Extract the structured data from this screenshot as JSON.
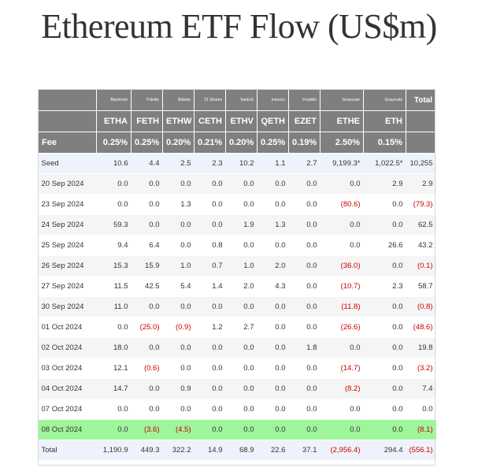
{
  "title": "Ethereum ETF Flow (US$m)",
  "colors": {
    "header_bg": "#7f7f7f",
    "highlight_row": "#9ef59a",
    "negative": "#cc0000",
    "seed_row": "#eef3fb"
  },
  "table": {
    "issuers": [
      "Blackrock",
      "Fidelity",
      "Bitwise",
      "21 Shares",
      "VanEck",
      "Invesco",
      "Franklin",
      "Grayscale",
      "Grayscale",
      "Total"
    ],
    "tickers": [
      "ETHA",
      "FETH",
      "ETHW",
      "CETH",
      "ETHV",
      "QETH",
      "EZET",
      "ETHE",
      "ETH"
    ],
    "fee_label": "Fee",
    "fees": [
      "0.25%",
      "0.25%",
      "0.20%",
      "0.21%",
      "0.20%",
      "0.25%",
      "0.19%",
      "2.50%",
      "0.15%"
    ],
    "rows": [
      {
        "label": "Seed",
        "values": [
          "10.6",
          "4.4",
          "2.5",
          "2.3",
          "10.2",
          "1.1",
          "2.7",
          "9,199.3*",
          "1,022.5*",
          "10,255"
        ]
      },
      {
        "label": "20 Sep 2024",
        "values": [
          "0.0",
          "0.0",
          "0.0",
          "0.0",
          "0.0",
          "0.0",
          "0.0",
          "0.0",
          "2.9",
          "2.9"
        ]
      },
      {
        "label": "23 Sep 2024",
        "values": [
          "0.0",
          "0.0",
          "1.3",
          "0.0",
          "0.0",
          "0.0",
          "0.0",
          "(80.6)",
          "0.0",
          "(79.3)"
        ]
      },
      {
        "label": "24 Sep 2024",
        "values": [
          "59.3",
          "0.0",
          "0.0",
          "0.0",
          "1.9",
          "1.3",
          "0.0",
          "0.0",
          "0.0",
          "62.5"
        ]
      },
      {
        "label": "25 Sep 2024",
        "values": [
          "9.4",
          "6.4",
          "0.0",
          "0.8",
          "0.0",
          "0.0",
          "0.0",
          "0.0",
          "26.6",
          "43.2"
        ]
      },
      {
        "label": "26 Sep 2024",
        "values": [
          "15.3",
          "15.9",
          "1.0",
          "0.7",
          "1.0",
          "2.0",
          "0.0",
          "(36.0)",
          "0.0",
          "(0.1)"
        ]
      },
      {
        "label": "27 Sep 2024",
        "values": [
          "11.5",
          "42.5",
          "5.4",
          "1.4",
          "2.0",
          "4.3",
          "0.0",
          "(10.7)",
          "2.3",
          "58.7"
        ]
      },
      {
        "label": "30 Sep 2024",
        "values": [
          "11.0",
          "0.0",
          "0.0",
          "0.0",
          "0.0",
          "0.0",
          "0.0",
          "(11.8)",
          "0.0",
          "(0.8)"
        ]
      },
      {
        "label": "01 Oct 2024",
        "values": [
          "0.0",
          "(25.0)",
          "(0.9)",
          "1.2",
          "2.7",
          "0.0",
          "0.0",
          "(26.6)",
          "0.0",
          "(48.6)"
        ]
      },
      {
        "label": "02 Oct 2024",
        "values": [
          "18.0",
          "0.0",
          "0.0",
          "0.0",
          "0.0",
          "0.0",
          "1.8",
          "0.0",
          "0.0",
          "19.8"
        ]
      },
      {
        "label": "03 Oct 2024",
        "values": [
          "12.1",
          "(0.6)",
          "0.0",
          "0.0",
          "0.0",
          "0.0",
          "0.0",
          "(14.7)",
          "0.0",
          "(3.2)"
        ]
      },
      {
        "label": "04 Oct 2024",
        "values": [
          "14.7",
          "0.0",
          "0.9",
          "0.0",
          "0.0",
          "0.0",
          "0.0",
          "(8.2)",
          "0.0",
          "7.4"
        ]
      },
      {
        "label": "07 Oct 2024",
        "values": [
          "0.0",
          "0.0",
          "0.0",
          "0.0",
          "0.0",
          "0.0",
          "0.0",
          "0.0",
          "0.0",
          "0.0"
        ]
      },
      {
        "label": "08 Oct 2024",
        "values": [
          "0.0",
          "(3.6)",
          "(4.5)",
          "0.0",
          "0.0",
          "0.0",
          "0.0",
          "0.0",
          "0.0",
          "(8.1)"
        ]
      }
    ],
    "total": {
      "label": "Total",
      "values": [
        "1,190.9",
        "449.3",
        "322.2",
        "14.9",
        "68.9",
        "22.6",
        "37.1",
        "(2,956.4)",
        "294.4",
        "(556.1)"
      ]
    }
  }
}
